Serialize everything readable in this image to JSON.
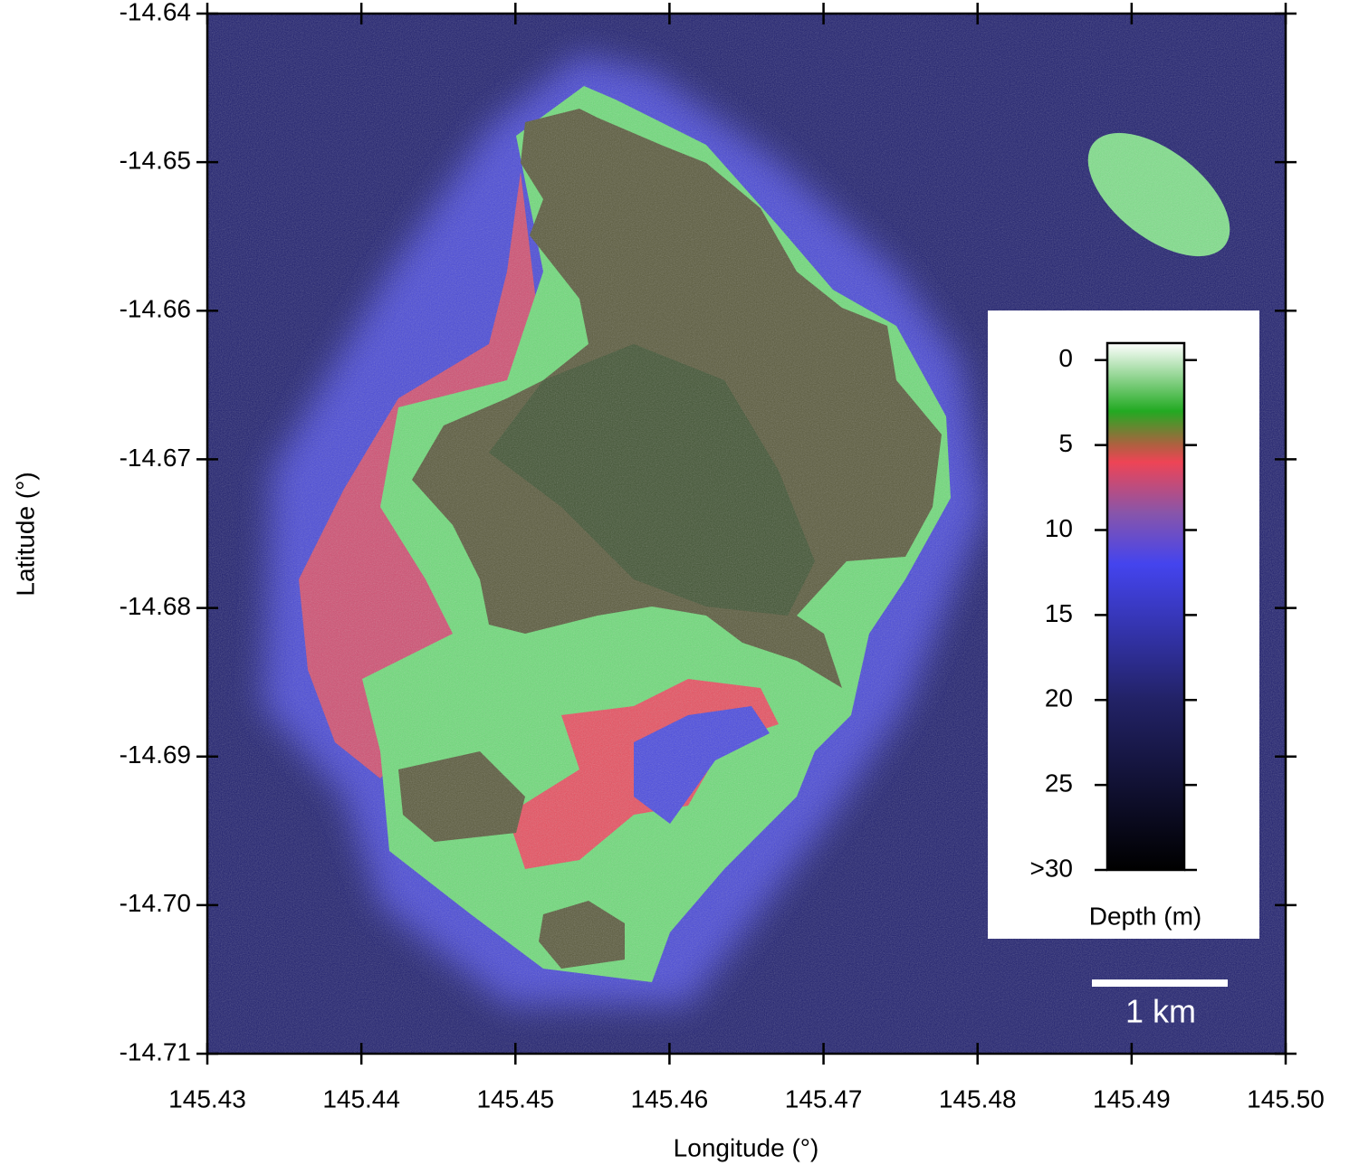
{
  "chart_data": {
    "type": "map",
    "xlabel": "Longitude (°)",
    "ylabel": "Latitude (°)",
    "xlim": [
      145.43,
      145.5
    ],
    "ylim": [
      -14.71,
      -14.64
    ],
    "xticks": [
      145.43,
      145.44,
      145.45,
      145.46,
      145.47,
      145.48,
      145.49,
      {
        "value": 145.5,
        "label": "145.50"
      }
    ],
    "yticks": [
      -14.64,
      -14.65,
      -14.66,
      -14.67,
      -14.68,
      -14.69,
      {
        "value": -14.7,
        "label": "-14.70"
      },
      -14.71
    ],
    "colorbar": {
      "label": "Depth (m)",
      "lim": [
        -1,
        30
      ],
      "ticks": [
        0,
        5,
        10,
        15,
        20,
        25,
        {
          "value": 30,
          "label": ">30"
        }
      ],
      "colormap": [
        {
          "value": -1,
          "color": "#ffffff"
        },
        {
          "value": 3,
          "color": "#22aa22"
        },
        {
          "value": 5,
          "color": "#b06040"
        },
        {
          "value": 6,
          "color": "#ee4455"
        },
        {
          "value": 9,
          "color": "#8855aa"
        },
        {
          "value": 12,
          "color": "#4444ee"
        },
        {
          "value": 20,
          "color": "#222266"
        },
        {
          "value": 30,
          "color": "#000000"
        }
      ]
    },
    "scale_bar": {
      "label": "1 km"
    }
  }
}
